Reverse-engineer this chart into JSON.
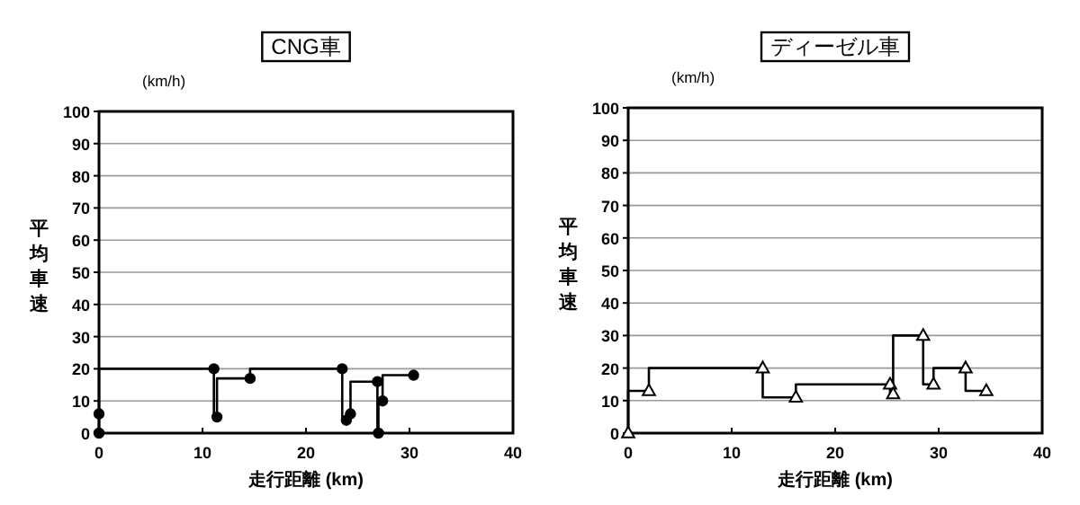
{
  "chart_data": [
    {
      "type": "step",
      "title": "CNG車",
      "xlabel": "走行距離 (km)",
      "ylabel": "平均車速",
      "annotations": [
        "(km/h)"
      ],
      "xlim": [
        0,
        40
      ],
      "xticks": [
        0,
        10,
        20,
        30,
        40
      ],
      "ylim": [
        0,
        100
      ],
      "yticks": [
        0,
        10,
        20,
        30,
        40,
        50,
        60,
        70,
        80,
        90,
        100
      ],
      "grid": "y",
      "marker": "circle",
      "line_style": "solid",
      "series": [
        {
          "color": "#000000",
          "x": [
            0,
            0,
            11.1,
            11.4,
            14.6,
            23.5,
            23.9,
            24.3,
            26.9,
            27.0,
            27.4,
            30.4
          ],
          "values": [
            0,
            6,
            20,
            5,
            17,
            20,
            4,
            6,
            16,
            0,
            10,
            18
          ]
        }
      ]
    },
    {
      "type": "step",
      "title": "ディーゼル車",
      "xlabel": "走行距離 (km)",
      "ylabel": "平均車速",
      "annotations": [
        "(km/h)"
      ],
      "xlim": [
        0,
        40
      ],
      "xticks": [
        0,
        10,
        20,
        30,
        40
      ],
      "ylim": [
        0,
        100
      ],
      "yticks": [
        0,
        10,
        20,
        30,
        40,
        50,
        60,
        70,
        80,
        90,
        100
      ],
      "grid": "y",
      "marker": "triangle",
      "line_style": "solid",
      "series": [
        {
          "color": "#000000",
          "x": [
            0,
            2.0,
            13.0,
            16.2,
            25.3,
            25.6,
            28.5,
            29.5,
            32.6,
            34.6
          ],
          "values": [
            0,
            13,
            20,
            11,
            15,
            12,
            30,
            15,
            20,
            13
          ]
        }
      ]
    }
  ]
}
